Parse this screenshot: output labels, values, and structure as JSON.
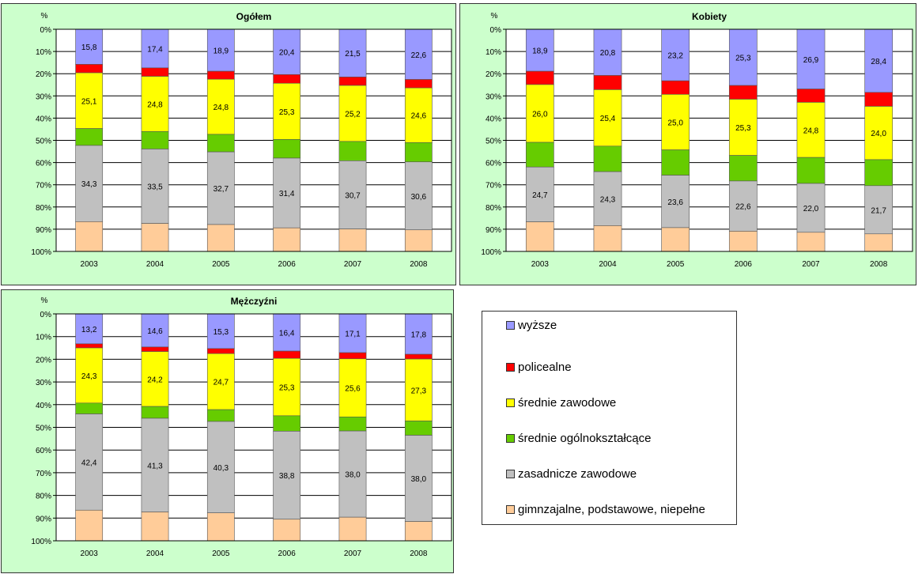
{
  "unit": "%",
  "chart_data": [
    {
      "type": "bar",
      "stacked": true,
      "title": "Ogółem",
      "ylabel": "%",
      "ylim": [
        0,
        100
      ],
      "y_ticks": [
        "0%",
        "10%",
        "20%",
        "30%",
        "40%",
        "50%",
        "60%",
        "70%",
        "80%",
        "90%",
        "100%"
      ],
      "grid": true,
      "categories": [
        "2003",
        "2004",
        "2005",
        "2006",
        "2007",
        "2008"
      ],
      "series": [
        {
          "name": "wyższe",
          "values": [
            15.8,
            17.4,
            18.9,
            20.4,
            21.5,
            22.6
          ],
          "labels": [
            "15,8",
            "17,4",
            "18,9",
            "20,4",
            "21,5",
            "22,6"
          ]
        },
        {
          "name": "policealne",
          "values": [
            3.8,
            3.8,
            3.6,
            3.9,
            3.8,
            3.8
          ]
        },
        {
          "name": "średnie zawodowe",
          "values": [
            25.1,
            24.8,
            24.8,
            25.3,
            25.2,
            24.6
          ],
          "labels": [
            "25,1",
            "24,8",
            "24,8",
            "25,3",
            "25,2",
            "24,6"
          ]
        },
        {
          "name": "średnie ogólnokształcące",
          "values": [
            7.6,
            7.9,
            7.9,
            8.4,
            8.7,
            8.7
          ]
        },
        {
          "name": "zasadnicze zawodowe",
          "values": [
            34.3,
            33.5,
            32.7,
            31.4,
            30.7,
            30.6
          ],
          "labels": [
            "34,3",
            "33,5",
            "32,7",
            "31,4",
            "30,7",
            "30,6"
          ]
        },
        {
          "name": "gimnzajalne, podstawowe, niepełne",
          "values": [
            13.4,
            12.6,
            12.1,
            10.6,
            10.1,
            9.7
          ]
        }
      ]
    },
    {
      "type": "bar",
      "stacked": true,
      "title": "Kobiety",
      "ylabel": "%",
      "ylim": [
        0,
        100
      ],
      "y_ticks": [
        "0%",
        "10%",
        "20%",
        "30%",
        "40%",
        "50%",
        "60%",
        "70%",
        "80%",
        "90%",
        "100%"
      ],
      "grid": true,
      "categories": [
        "2003",
        "2004",
        "2005",
        "2006",
        "2007",
        "2008"
      ],
      "series": [
        {
          "name": "wyższe",
          "values": [
            18.9,
            20.8,
            23.2,
            25.3,
            26.9,
            28.4
          ],
          "labels": [
            "18,9",
            "20,8",
            "23,2",
            "25,3",
            "26,9",
            "28,4"
          ]
        },
        {
          "name": "policealne",
          "values": [
            6.0,
            6.4,
            6.1,
            6.2,
            6.0,
            6.3
          ]
        },
        {
          "name": "średnie zawodowe",
          "values": [
            26.0,
            25.4,
            25.0,
            25.3,
            24.8,
            24.0
          ],
          "labels": [
            "26,0",
            "25,4",
            "25,0",
            "25,3",
            "24,8",
            "24,0"
          ]
        },
        {
          "name": "średnie ogólnokształcące",
          "values": [
            11.1,
            11.5,
            11.4,
            11.5,
            11.7,
            11.7
          ]
        },
        {
          "name": "zasadnicze zawodowe",
          "values": [
            24.7,
            24.3,
            23.6,
            22.6,
            22.0,
            21.7
          ],
          "labels": [
            "24,7",
            "24,3",
            "23,6",
            "22,6",
            "22,0",
            "21,7"
          ]
        },
        {
          "name": "gimnzajalne, podstawowe, niepełne",
          "values": [
            13.3,
            11.6,
            10.7,
            9.1,
            8.6,
            7.9
          ]
        }
      ]
    },
    {
      "type": "bar",
      "stacked": true,
      "title": "Mężczyźni",
      "ylabel": "%",
      "ylim": [
        0,
        100
      ],
      "y_ticks": [
        "0%",
        "10%",
        "20%",
        "30%",
        "40%",
        "50%",
        "60%",
        "70%",
        "80%",
        "90%",
        "100%"
      ],
      "grid": true,
      "categories": [
        "2003",
        "2004",
        "2005",
        "2006",
        "2007",
        "2008"
      ],
      "series": [
        {
          "name": "wyższe",
          "values": [
            13.2,
            14.6,
            15.3,
            16.4,
            17.1,
            17.8
          ],
          "labels": [
            "13,2",
            "14,6",
            "15,3",
            "16,4",
            "17,1",
            "17,8"
          ]
        },
        {
          "name": "policealne",
          "values": [
            1.8,
            2.0,
            2.2,
            3.2,
            2.7,
            2.1
          ]
        },
        {
          "name": "średnie zawodowe",
          "values": [
            24.3,
            24.2,
            24.7,
            25.3,
            25.6,
            27.3
          ],
          "labels": [
            "24,3",
            "24,2",
            "24,7",
            "25,3",
            "25,6",
            "27,3"
          ]
        },
        {
          "name": "średnie ogólnokształcące",
          "values": [
            4.8,
            5.2,
            5.2,
            6.8,
            6.2,
            6.3
          ]
        },
        {
          "name": "zasadnicze zawodowe",
          "values": [
            42.4,
            41.3,
            40.3,
            38.8,
            38.0,
            38.0
          ],
          "labels": [
            "42,4",
            "41,3",
            "40,3",
            "38,8",
            "38,0",
            "38,0"
          ]
        },
        {
          "name": "gimnzajalne, podstawowe, niepełne",
          "values": [
            13.5,
            12.7,
            12.3,
            9.5,
            10.4,
            8.5
          ]
        }
      ]
    }
  ],
  "legend": {
    "items": [
      {
        "label": "wyższe",
        "color": "#9999ff"
      },
      {
        "label": "policealne",
        "color": "#ff0000"
      },
      {
        "label": "średnie zawodowe",
        "color": "#ffff00"
      },
      {
        "label": "średnie ogólnokształcące",
        "color": "#66cc00"
      },
      {
        "label": "zasadnicze zawodowe",
        "color": "#c0c0c0"
      },
      {
        "label": "gimnzajalne, podstawowe, niepełne",
        "color": "#ffcc99"
      }
    ]
  }
}
